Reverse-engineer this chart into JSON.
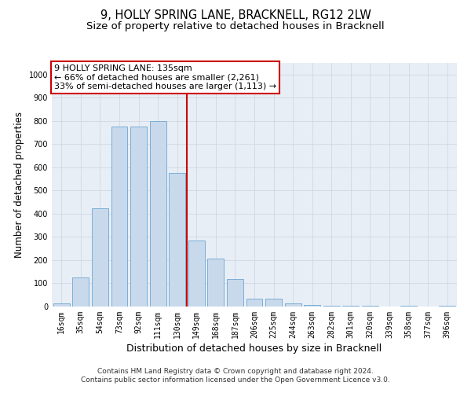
{
  "title": "9, HOLLY SPRING LANE, BRACKNELL, RG12 2LW",
  "subtitle": "Size of property relative to detached houses in Bracknell",
  "xlabel": "Distribution of detached houses by size in Bracknell",
  "ylabel": "Number of detached properties",
  "categories": [
    "16sqm",
    "35sqm",
    "54sqm",
    "73sqm",
    "92sqm",
    "111sqm",
    "130sqm",
    "149sqm",
    "168sqm",
    "187sqm",
    "206sqm",
    "225sqm",
    "244sqm",
    "263sqm",
    "282sqm",
    "301sqm",
    "320sqm",
    "339sqm",
    "358sqm",
    "377sqm",
    "396sqm"
  ],
  "values": [
    15,
    125,
    425,
    775,
    775,
    800,
    575,
    285,
    205,
    120,
    35,
    35,
    12,
    8,
    5,
    5,
    5,
    0,
    5,
    0,
    5
  ],
  "bar_color": "#c9d9ec",
  "bar_edge_color": "#7aaed6",
  "ylim": [
    0,
    1050
  ],
  "yticks": [
    0,
    100,
    200,
    300,
    400,
    500,
    600,
    700,
    800,
    900,
    1000
  ],
  "grid_color": "#d0d8e4",
  "background_color": "#e8eef5",
  "marker_bin_index": 6,
  "annotation_title": "9 HOLLY SPRING LANE: 135sqm",
  "annotation_line1": "← 66% of detached houses are smaller (2,261)",
  "annotation_line2": "33% of semi-detached houses are larger (1,113) →",
  "annotation_box_color": "#ffffff",
  "annotation_box_edge_color": "#cc0000",
  "vline_color": "#cc0000",
  "footer_line1": "Contains HM Land Registry data © Crown copyright and database right 2024.",
  "footer_line2": "Contains public sector information licensed under the Open Government Licence v3.0.",
  "title_fontsize": 10.5,
  "subtitle_fontsize": 9.5,
  "ylabel_fontsize": 8.5,
  "xlabel_fontsize": 9,
  "tick_fontsize": 7,
  "annotation_fontsize": 8,
  "footer_fontsize": 6.5
}
